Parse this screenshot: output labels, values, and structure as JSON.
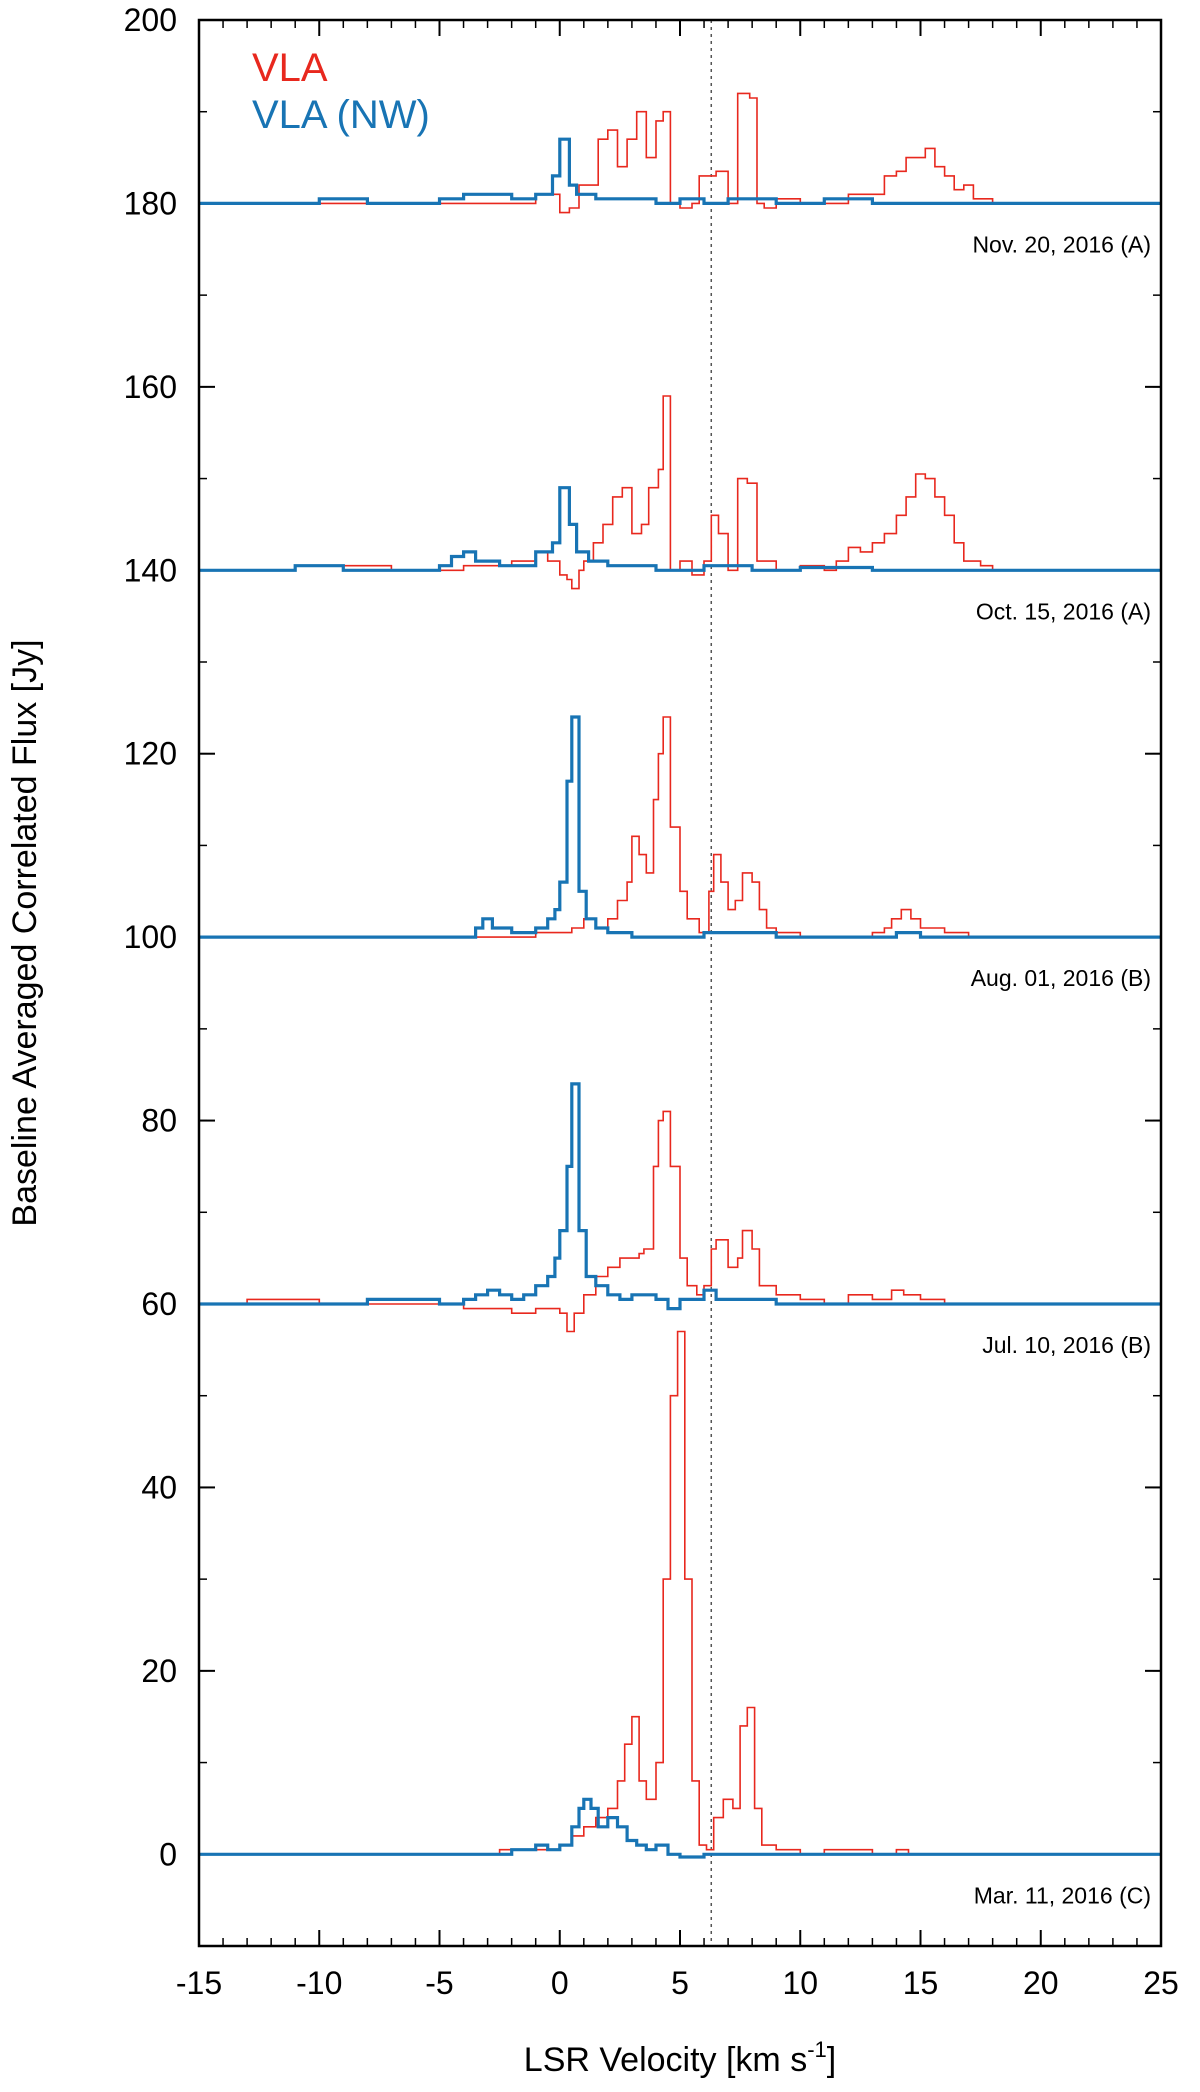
{
  "chart_data": {
    "type": "line",
    "style": "step",
    "xlabel": "LSR Velocity [km s",
    "xlabel_sup": "-1",
    "xlabel_close": "]",
    "ylabel": "Baseline Averaged Correlated Flux [Jy]",
    "xlim": [
      -15,
      25
    ],
    "ylim": [
      -10,
      200
    ],
    "x_ticks": [
      -15,
      -10,
      -5,
      0,
      5,
      10,
      15,
      20,
      25
    ],
    "y_ticks": [
      0,
      20,
      40,
      60,
      80,
      100,
      120,
      140,
      160,
      180,
      200
    ],
    "vline_x": 6.3,
    "colors": {
      "vla": "#e8281e",
      "vla_nw": "#1874b4"
    },
    "legend": {
      "position": "top-left",
      "entries": [
        "VLA",
        "VLA (NW)"
      ]
    },
    "epochs": [
      {
        "label": "Nov. 20, 2016 (A)",
        "offset": 180,
        "vla": [
          [
            -15,
            0
          ],
          [
            -2,
            0
          ],
          [
            -1,
            1
          ],
          [
            0,
            -1
          ],
          [
            0.4,
            -0.5
          ],
          [
            0.8,
            2
          ],
          [
            1.4,
            2
          ],
          [
            1.6,
            7
          ],
          [
            2,
            8
          ],
          [
            2.4,
            4
          ],
          [
            2.8,
            7
          ],
          [
            3.2,
            10
          ],
          [
            3.6,
            5
          ],
          [
            4,
            9
          ],
          [
            4.3,
            10
          ],
          [
            4.6,
            0
          ],
          [
            5,
            -0.5
          ],
          [
            5.5,
            0
          ],
          [
            5.8,
            3
          ],
          [
            6.5,
            3.5
          ],
          [
            7,
            0
          ],
          [
            7.4,
            12
          ],
          [
            7.9,
            11.5
          ],
          [
            8.2,
            0
          ],
          [
            8.5,
            -0.5
          ],
          [
            9,
            0.5
          ],
          [
            10,
            0
          ],
          [
            11,
            0
          ],
          [
            12,
            1
          ],
          [
            13,
            1
          ],
          [
            13.5,
            3
          ],
          [
            14,
            3.5
          ],
          [
            14.4,
            5
          ],
          [
            14.8,
            5
          ],
          [
            15.2,
            6
          ],
          [
            15.6,
            4
          ],
          [
            16,
            3
          ],
          [
            16.4,
            1.5
          ],
          [
            16.8,
            2
          ],
          [
            17.2,
            0.5
          ],
          [
            18,
            0
          ],
          [
            25,
            0
          ]
        ],
        "vla_nw": [
          [
            -15,
            0
          ],
          [
            -10,
            0.5
          ],
          [
            -8,
            0
          ],
          [
            -5,
            0.5
          ],
          [
            -4,
            1
          ],
          [
            -2,
            0.5
          ],
          [
            -1,
            1
          ],
          [
            -0.3,
            3
          ],
          [
            0,
            7
          ],
          [
            0.4,
            2
          ],
          [
            0.7,
            1
          ],
          [
            1.5,
            0.5
          ],
          [
            3,
            0.5
          ],
          [
            4,
            0
          ],
          [
            5,
            0.5
          ],
          [
            6,
            0
          ],
          [
            7,
            0.5
          ],
          [
            9,
            0
          ],
          [
            11,
            0.5
          ],
          [
            13,
            0
          ],
          [
            25,
            0
          ]
        ]
      },
      {
        "label": "Oct. 15, 2016 (A)",
        "offset": 140,
        "vla": [
          [
            -15,
            0
          ],
          [
            -11,
            0.5
          ],
          [
            -7,
            0
          ],
          [
            -4,
            0.5
          ],
          [
            -2,
            1
          ],
          [
            -1,
            2
          ],
          [
            -0.5,
            1
          ],
          [
            0,
            -0.5
          ],
          [
            0.3,
            -1
          ],
          [
            0.5,
            -2
          ],
          [
            0.8,
            0
          ],
          [
            1,
            1
          ],
          [
            1.4,
            3
          ],
          [
            1.8,
            5
          ],
          [
            2.2,
            8
          ],
          [
            2.6,
            9
          ],
          [
            3,
            4
          ],
          [
            3.4,
            5
          ],
          [
            3.7,
            9
          ],
          [
            4.1,
            11
          ],
          [
            4.3,
            19
          ],
          [
            4.6,
            0
          ],
          [
            5,
            1
          ],
          [
            5.5,
            -0.5
          ],
          [
            6,
            1
          ],
          [
            6.3,
            6
          ],
          [
            6.6,
            4
          ],
          [
            7,
            0
          ],
          [
            7.4,
            10
          ],
          [
            7.8,
            9.5
          ],
          [
            8.2,
            1
          ],
          [
            9,
            0
          ],
          [
            10,
            0.5
          ],
          [
            11,
            0
          ],
          [
            11.5,
            1
          ],
          [
            12,
            2.5
          ],
          [
            12.5,
            2
          ],
          [
            13,
            3
          ],
          [
            13.5,
            4
          ],
          [
            14,
            6
          ],
          [
            14.4,
            8
          ],
          [
            14.8,
            10.5
          ],
          [
            15.2,
            10
          ],
          [
            15.6,
            8
          ],
          [
            16,
            6
          ],
          [
            16.4,
            3
          ],
          [
            16.8,
            1
          ],
          [
            17.5,
            0.5
          ],
          [
            18,
            0
          ],
          [
            25,
            0
          ]
        ],
        "vla_nw": [
          [
            -15,
            0
          ],
          [
            -11,
            0.5
          ],
          [
            -9,
            0
          ],
          [
            -5,
            0.5
          ],
          [
            -4.5,
            1.5
          ],
          [
            -4,
            2
          ],
          [
            -3.5,
            1
          ],
          [
            -2.5,
            0.5
          ],
          [
            -1,
            2
          ],
          [
            -0.5,
            2
          ],
          [
            -0.3,
            3
          ],
          [
            0,
            9
          ],
          [
            0.4,
            5
          ],
          [
            0.7,
            2
          ],
          [
            1.2,
            1
          ],
          [
            2,
            0.5
          ],
          [
            4,
            0
          ],
          [
            6,
            0.5
          ],
          [
            8,
            0
          ],
          [
            10,
            0.3
          ],
          [
            13,
            0
          ],
          [
            25,
            0
          ]
        ]
      },
      {
        "label": "Aug. 01, 2016 (B)",
        "offset": 100,
        "vla": [
          [
            -15,
            0
          ],
          [
            -2,
            0
          ],
          [
            -1,
            0.5
          ],
          [
            0,
            0.5
          ],
          [
            0.5,
            1
          ],
          [
            1,
            2
          ],
          [
            1.5,
            1
          ],
          [
            2,
            2
          ],
          [
            2.4,
            4
          ],
          [
            2.8,
            6
          ],
          [
            3,
            11
          ],
          [
            3.3,
            9
          ],
          [
            3.6,
            7
          ],
          [
            3.9,
            15
          ],
          [
            4.1,
            20
          ],
          [
            4.3,
            24
          ],
          [
            4.6,
            12
          ],
          [
            5,
            5
          ],
          [
            5.3,
            2
          ],
          [
            5.8,
            0.5
          ],
          [
            6.2,
            5
          ],
          [
            6.4,
            9
          ],
          [
            6.7,
            6
          ],
          [
            7,
            3
          ],
          [
            7.3,
            4
          ],
          [
            7.6,
            7
          ],
          [
            8,
            6
          ],
          [
            8.3,
            3
          ],
          [
            8.6,
            1
          ],
          [
            9,
            0.5
          ],
          [
            10,
            0
          ],
          [
            13,
            0.5
          ],
          [
            13.5,
            1
          ],
          [
            13.8,
            2
          ],
          [
            14.2,
            3
          ],
          [
            14.6,
            2
          ],
          [
            15,
            1
          ],
          [
            16,
            0.5
          ],
          [
            17,
            0
          ],
          [
            25,
            0
          ]
        ],
        "vla_nw": [
          [
            -15,
            0
          ],
          [
            -4,
            0
          ],
          [
            -3.5,
            1
          ],
          [
            -3.2,
            2
          ],
          [
            -2.8,
            1
          ],
          [
            -2,
            0.5
          ],
          [
            -1,
            1
          ],
          [
            -0.5,
            2
          ],
          [
            -0.2,
            3
          ],
          [
            0,
            6
          ],
          [
            0.3,
            17
          ],
          [
            0.5,
            24
          ],
          [
            0.8,
            5
          ],
          [
            1.1,
            2
          ],
          [
            1.5,
            1
          ],
          [
            2,
            0.5
          ],
          [
            3,
            0
          ],
          [
            6,
            0.5
          ],
          [
            9,
            0
          ],
          [
            14,
            0.5
          ],
          [
            15,
            0
          ],
          [
            25,
            0
          ]
        ]
      },
      {
        "label": "Jul. 10, 2016 (B)",
        "offset": 60,
        "vla": [
          [
            -15,
            0
          ],
          [
            -13,
            0.5
          ],
          [
            -10,
            0
          ],
          [
            -6,
            0
          ],
          [
            -4,
            -0.5
          ],
          [
            -2,
            -1
          ],
          [
            -1,
            -0.5
          ],
          [
            0,
            -1
          ],
          [
            0.3,
            -3
          ],
          [
            0.6,
            -1
          ],
          [
            1,
            1
          ],
          [
            1.5,
            3
          ],
          [
            2,
            4
          ],
          [
            2.5,
            5
          ],
          [
            3,
            5
          ],
          [
            3.3,
            5.5
          ],
          [
            3.5,
            6
          ],
          [
            3.9,
            15
          ],
          [
            4.1,
            20
          ],
          [
            4.3,
            21
          ],
          [
            4.6,
            15
          ],
          [
            5,
            5
          ],
          [
            5.3,
            2
          ],
          [
            5.7,
            1
          ],
          [
            6,
            2
          ],
          [
            6.3,
            6
          ],
          [
            6.5,
            7
          ],
          [
            7,
            4
          ],
          [
            7.4,
            5
          ],
          [
            7.6,
            8
          ],
          [
            8,
            6
          ],
          [
            8.3,
            2
          ],
          [
            9,
            1
          ],
          [
            10,
            0.5
          ],
          [
            11,
            0
          ],
          [
            12,
            1
          ],
          [
            13,
            0.5
          ],
          [
            13.8,
            1.5
          ],
          [
            14.3,
            1
          ],
          [
            15,
            0.5
          ],
          [
            16,
            0
          ],
          [
            25,
            0
          ]
        ],
        "vla_nw": [
          [
            -15,
            0
          ],
          [
            -8,
            0.5
          ],
          [
            -5,
            0
          ],
          [
            -4,
            0.5
          ],
          [
            -3.5,
            1
          ],
          [
            -3,
            1.5
          ],
          [
            -2.5,
            1
          ],
          [
            -2,
            0.5
          ],
          [
            -1.5,
            1
          ],
          [
            -1,
            2
          ],
          [
            -0.5,
            3
          ],
          [
            -0.2,
            5
          ],
          [
            0,
            8
          ],
          [
            0.3,
            15
          ],
          [
            0.5,
            24
          ],
          [
            0.8,
            8
          ],
          [
            1.1,
            3
          ],
          [
            1.5,
            2
          ],
          [
            2,
            1
          ],
          [
            2.5,
            0.5
          ],
          [
            3,
            1
          ],
          [
            4,
            0.5
          ],
          [
            4.5,
            -0.5
          ],
          [
            5,
            0.5
          ],
          [
            6,
            1.5
          ],
          [
            6.5,
            0.5
          ],
          [
            7,
            0.5
          ],
          [
            8,
            0.5
          ],
          [
            9,
            0
          ],
          [
            25,
            0
          ]
        ]
      },
      {
        "label": "Mar. 11, 2016 (C)",
        "offset": 0,
        "vla": [
          [
            -15,
            0
          ],
          [
            -3,
            0
          ],
          [
            -2.5,
            0.5
          ],
          [
            -2,
            0.5
          ],
          [
            -1.5,
            0.5
          ],
          [
            -1,
            0.5
          ],
          [
            0,
            1
          ],
          [
            0.5,
            2
          ],
          [
            1,
            3
          ],
          [
            1.5,
            4
          ],
          [
            2,
            5
          ],
          [
            2.4,
            8
          ],
          [
            2.7,
            12
          ],
          [
            3,
            15
          ],
          [
            3.3,
            8
          ],
          [
            3.6,
            6
          ],
          [
            4,
            10
          ],
          [
            4.3,
            30
          ],
          [
            4.6,
            50
          ],
          [
            4.9,
            57
          ],
          [
            5.2,
            30
          ],
          [
            5.5,
            8
          ],
          [
            5.8,
            1
          ],
          [
            6.1,
            0.5
          ],
          [
            6.4,
            4
          ],
          [
            6.8,
            6
          ],
          [
            7.2,
            5
          ],
          [
            7.5,
            14
          ],
          [
            7.8,
            16
          ],
          [
            8.1,
            5
          ],
          [
            8.4,
            1
          ],
          [
            9,
            0.5
          ],
          [
            10,
            0
          ],
          [
            11,
            0.5
          ],
          [
            12,
            0.5
          ],
          [
            13,
            0
          ],
          [
            14,
            0.5
          ],
          [
            14.5,
            0
          ],
          [
            25,
            0
          ]
        ],
        "vla_nw": [
          [
            -15,
            0
          ],
          [
            -3,
            0
          ],
          [
            -2,
            0.5
          ],
          [
            -1,
            1
          ],
          [
            -0.5,
            0.5
          ],
          [
            0,
            1
          ],
          [
            0.5,
            3
          ],
          [
            0.8,
            5
          ],
          [
            1,
            6
          ],
          [
            1.3,
            5
          ],
          [
            1.6,
            3
          ],
          [
            2,
            4
          ],
          [
            2.4,
            3
          ],
          [
            2.8,
            1.5
          ],
          [
            3.2,
            1
          ],
          [
            3.6,
            0.5
          ],
          [
            4,
            1
          ],
          [
            4.5,
            0
          ],
          [
            5,
            -0.3
          ],
          [
            6,
            0
          ],
          [
            25,
            0
          ]
        ]
      }
    ]
  }
}
